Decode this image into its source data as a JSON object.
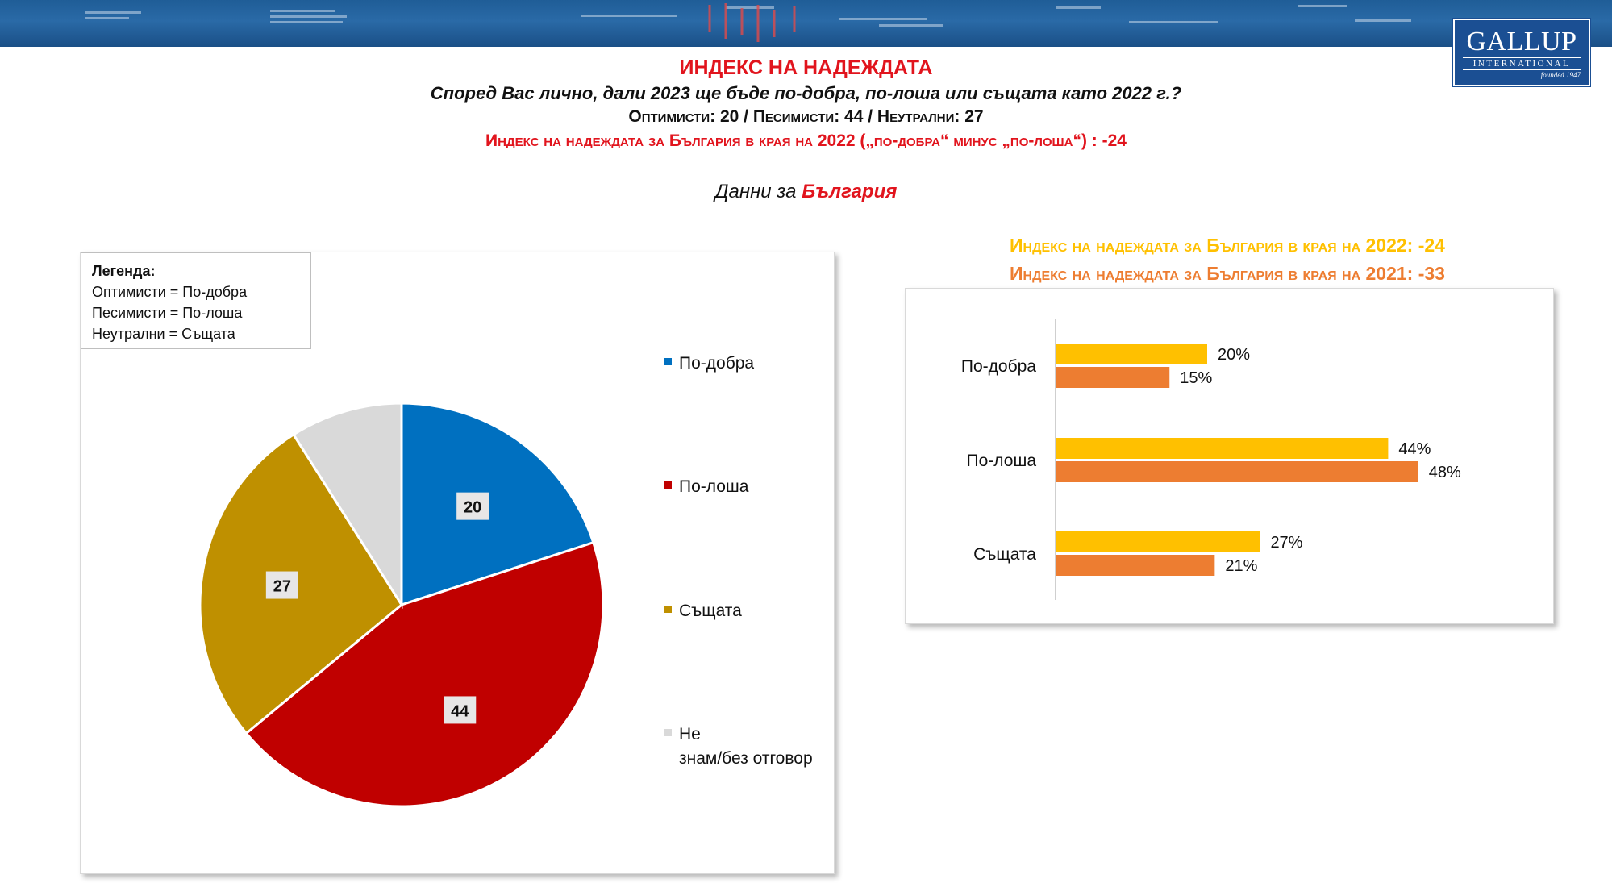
{
  "header": {
    "title": "ИНДЕКС НА НАДЕЖДАТА",
    "question": "Според Вас лично, дали 2023 ще бъде по-добра, по-лоша или същата като 2022 г.?",
    "counts_line": "Оптимисти: 20 / Песимисти: 44 / Неутрални: 27",
    "index_line": "Индекс на надеждата за България в края на 2022 („по-добра“ минус „по-лоша“) : -24",
    "data_for_prefix": "Данни за",
    "data_for_country": "България"
  },
  "logo": {
    "name": "GALLUP",
    "sub": "INTERNATIONAL",
    "founded": "founded 1947"
  },
  "colors": {
    "better": "#0070c0",
    "worse": "#c00000",
    "same": "#bf9000",
    "dontknow": "#d9d9d9",
    "bar2022": "#ffc000",
    "bar2021": "#ed7d31",
    "accent": "#e1141d"
  },
  "legend_box": {
    "title": "Легенда:",
    "lines": [
      "Оптимисти = По-добра",
      "Песимисти = По-лоша",
      "Неутрални = Същата"
    ]
  },
  "bar_headings": [
    "Индекс на надеждата за България в края на 2022: -24",
    "Индекс на надеждата за България в края на 2021: -33"
  ],
  "chart_data": [
    {
      "type": "pie",
      "slices": [
        {
          "label": "По-добра",
          "value": 20,
          "data_label": "20",
          "color": "#0070c0"
        },
        {
          "label": "По-лоша",
          "value": 44,
          "data_label": "44",
          "color": "#c00000"
        },
        {
          "label": "Същата",
          "value": 27,
          "data_label": "27",
          "color": "#bf9000"
        },
        {
          "label": "Не знам/без отговор",
          "value": 9,
          "data_label": "",
          "color": "#d9d9d9"
        }
      ],
      "legend_labels": [
        "По-добра",
        "По-лоша",
        "Същата",
        "Не знам/без отговор"
      ],
      "legend_placement": "right"
    },
    {
      "type": "bar",
      "orientation": "horizontal",
      "categories": [
        "По-добра",
        "По-лоша",
        "Същата"
      ],
      "series": [
        {
          "values": [
            20,
            44,
            27
          ],
          "labels": [
            "20%",
            "44%",
            "27%"
          ],
          "color": "#ffc000"
        },
        {
          "values": [
            15,
            48,
            21
          ],
          "labels": [
            "15%",
            "48%",
            "21%"
          ],
          "color": "#ed7d31"
        }
      ],
      "xlim": [
        0,
        55
      ],
      "grid": false
    }
  ]
}
